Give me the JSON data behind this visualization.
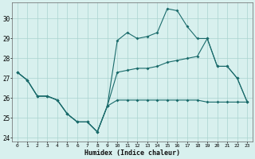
{
  "xlabel": "Humidex (Indice chaleur)",
  "xlim": [
    -0.5,
    23.5
  ],
  "ylim": [
    23.8,
    30.8
  ],
  "yticks": [
    24,
    25,
    26,
    27,
    28,
    29,
    30
  ],
  "xticks": [
    0,
    1,
    2,
    3,
    4,
    5,
    6,
    7,
    8,
    9,
    10,
    11,
    12,
    13,
    14,
    15,
    16,
    17,
    18,
    19,
    20,
    21,
    22,
    23
  ],
  "bg_color": "#d8f0ee",
  "grid_color": "#aad4d0",
  "line_color": "#1a6b6b",
  "line_min": [
    27.3,
    26.9,
    26.1,
    26.1,
    25.9,
    25.2,
    24.8,
    24.8,
    24.3,
    25.6,
    25.9,
    25.9,
    25.9,
    25.9,
    25.9,
    25.9,
    25.9,
    25.9,
    25.9,
    25.8,
    25.8,
    25.8,
    25.8,
    25.8
  ],
  "line_max": [
    27.3,
    26.9,
    26.1,
    26.1,
    25.9,
    25.2,
    24.8,
    24.8,
    24.3,
    25.6,
    28.9,
    29.3,
    29.0,
    29.1,
    29.3,
    30.5,
    30.4,
    29.6,
    29.0,
    29.0,
    27.6,
    27.6,
    27.0,
    25.8
  ],
  "line_avg": [
    27.3,
    26.9,
    26.1,
    26.1,
    25.9,
    25.2,
    24.8,
    24.8,
    24.3,
    25.6,
    27.3,
    27.4,
    27.5,
    27.5,
    27.6,
    27.8,
    27.9,
    28.0,
    28.1,
    29.0,
    27.6,
    27.6,
    27.0,
    25.8
  ],
  "x": [
    0,
    1,
    2,
    3,
    4,
    5,
    6,
    7,
    8,
    9,
    10,
    11,
    12,
    13,
    14,
    15,
    16,
    17,
    18,
    19,
    20,
    21,
    22,
    23
  ]
}
